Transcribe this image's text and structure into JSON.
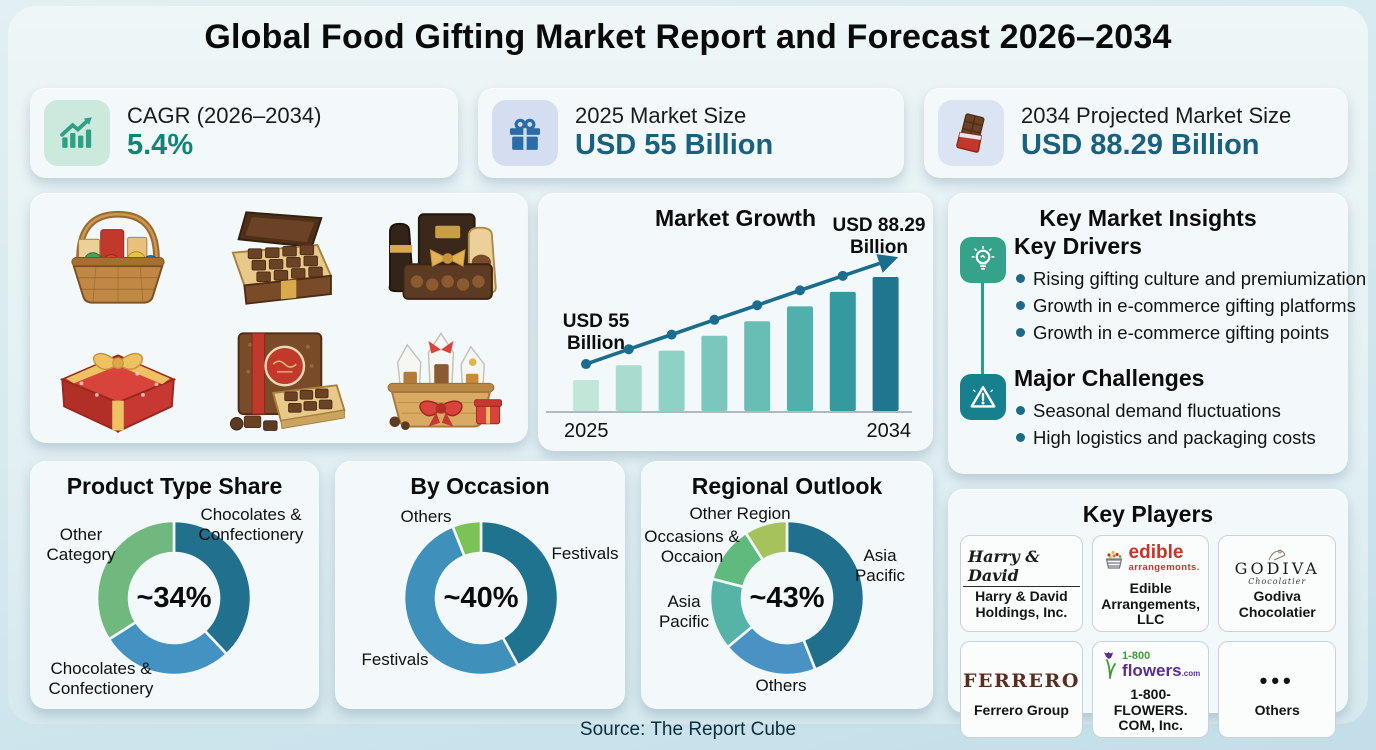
{
  "title": "Global Food Gifting Market Report and Forecast 2026–2034",
  "source": "Source: The Report Cube",
  "stat_cards": [
    {
      "label": "CAGR (2026–2034)",
      "value": "5.4%",
      "icon": "growth-chart-icon",
      "value_color": "#108577"
    },
    {
      "label": "2025 Market Size",
      "value": "USD 55 Billion",
      "icon": "gift-icon",
      "value_color": "#1a607f"
    },
    {
      "label": "2034 Projected Market Size",
      "value": "USD 88.29 Billion",
      "icon": "chocolate-bar-icon",
      "value_color": "#1a607f"
    }
  ],
  "illustrations": [
    "gift-basket",
    "open-chocolate-box",
    "gift-hamper",
    "red-gift-box-gold-bow",
    "chocolate-box-red-ribbon",
    "festive-treat-basket"
  ],
  "insights": {
    "title": "Key Market Insights",
    "drivers_title": "Key Drivers",
    "drivers_icon": "lightbulb-icon",
    "drivers": [
      "Rising gifting culture and premiumization",
      "Growth in e-commerce gifting platforms",
      "Growth in e-commerce gifting points"
    ],
    "challenges_title": "Major Challenges",
    "challenges_icon": "warning-icon",
    "challenges": [
      "Seasonal demand fluctuations",
      "High logistics and packaging costs"
    ]
  },
  "key_players": {
    "title": "Key Players",
    "players": [
      {
        "logo1": "Harry & David",
        "name": "Harry & David Holdings, Inc."
      },
      {
        "logo1": "edible",
        "logo2": "arrangemonts.",
        "name": "Edible Arrangements, LLC"
      },
      {
        "logo1": "GODIVA",
        "logo2": "Chocolatier",
        "name": "Godiva Chocolatier"
      },
      {
        "logo1": "FERRERO",
        "name": "Ferrero Group"
      },
      {
        "logo1": "1-800",
        "logo2": "flowers",
        "logo3": ".com",
        "name": "1-800-FLOWERS. COM, Inc."
      },
      {
        "logo1": "•••",
        "name": "Others"
      }
    ]
  },
  "chart_data": [
    {
      "type": "bar",
      "title": "Market Growth",
      "note": "8 rising bars from 2025 to 2034 with trend arrow; only endpoints labeled",
      "x_labels": [
        "2025",
        "2034"
      ],
      "values": [
        55,
        59.8,
        64.5,
        69.3,
        74.0,
        78.8,
        83.5,
        88.29
      ],
      "unit": "USD Billion",
      "ylim": [
        45,
        88.29
      ],
      "start_annotation": "USD 55 Billion",
      "end_annotation": "USD 88.29 Billion",
      "line_color": "#1a6d8c",
      "bar_colors": [
        "#c2e6d7",
        "#a9dcce",
        "#90d1c5",
        "#7cc7bd",
        "#68bdb4",
        "#50b0ac",
        "#359aa0",
        "#20758f"
      ]
    },
    {
      "type": "donut",
      "title": "Product Type Share",
      "center_label": "~34%",
      "legend_position": "around",
      "segments": [
        {
          "label": "Chocolates & Confectionery",
          "value": 38,
          "color": "#20708e"
        },
        {
          "label": "Chocolates & Confectionery",
          "value": 28,
          "color": "#4492c2"
        },
        {
          "label": "Other Category",
          "value": 34,
          "color": "#6fb97e"
        }
      ]
    },
    {
      "type": "donut",
      "title": "By Occasion",
      "center_label": "~40%",
      "legend_position": "around",
      "segments": [
        {
          "label": "Festivals",
          "value": 42,
          "color": "#20738f"
        },
        {
          "label": "Festivals",
          "value": 52,
          "color": "#4090bc"
        },
        {
          "label": "Others",
          "value": 6,
          "color": "#7cc355"
        }
      ]
    },
    {
      "type": "donut",
      "title": "Regional Outlook",
      "center_label": "~43%",
      "legend_position": "around",
      "segments": [
        {
          "label": "Asia Pacific",
          "value": 44,
          "color": "#1f6f8d"
        },
        {
          "label": "Others",
          "value": 20,
          "color": "#4a92c4"
        },
        {
          "label": "Asia Pacific",
          "value": 15,
          "color": "#55b4a5"
        },
        {
          "label": "Occasions & Occaion",
          "value": 12,
          "color": "#5eba7d"
        },
        {
          "label": "Other Region",
          "value": 9,
          "color": "#a6c25d"
        }
      ]
    }
  ]
}
